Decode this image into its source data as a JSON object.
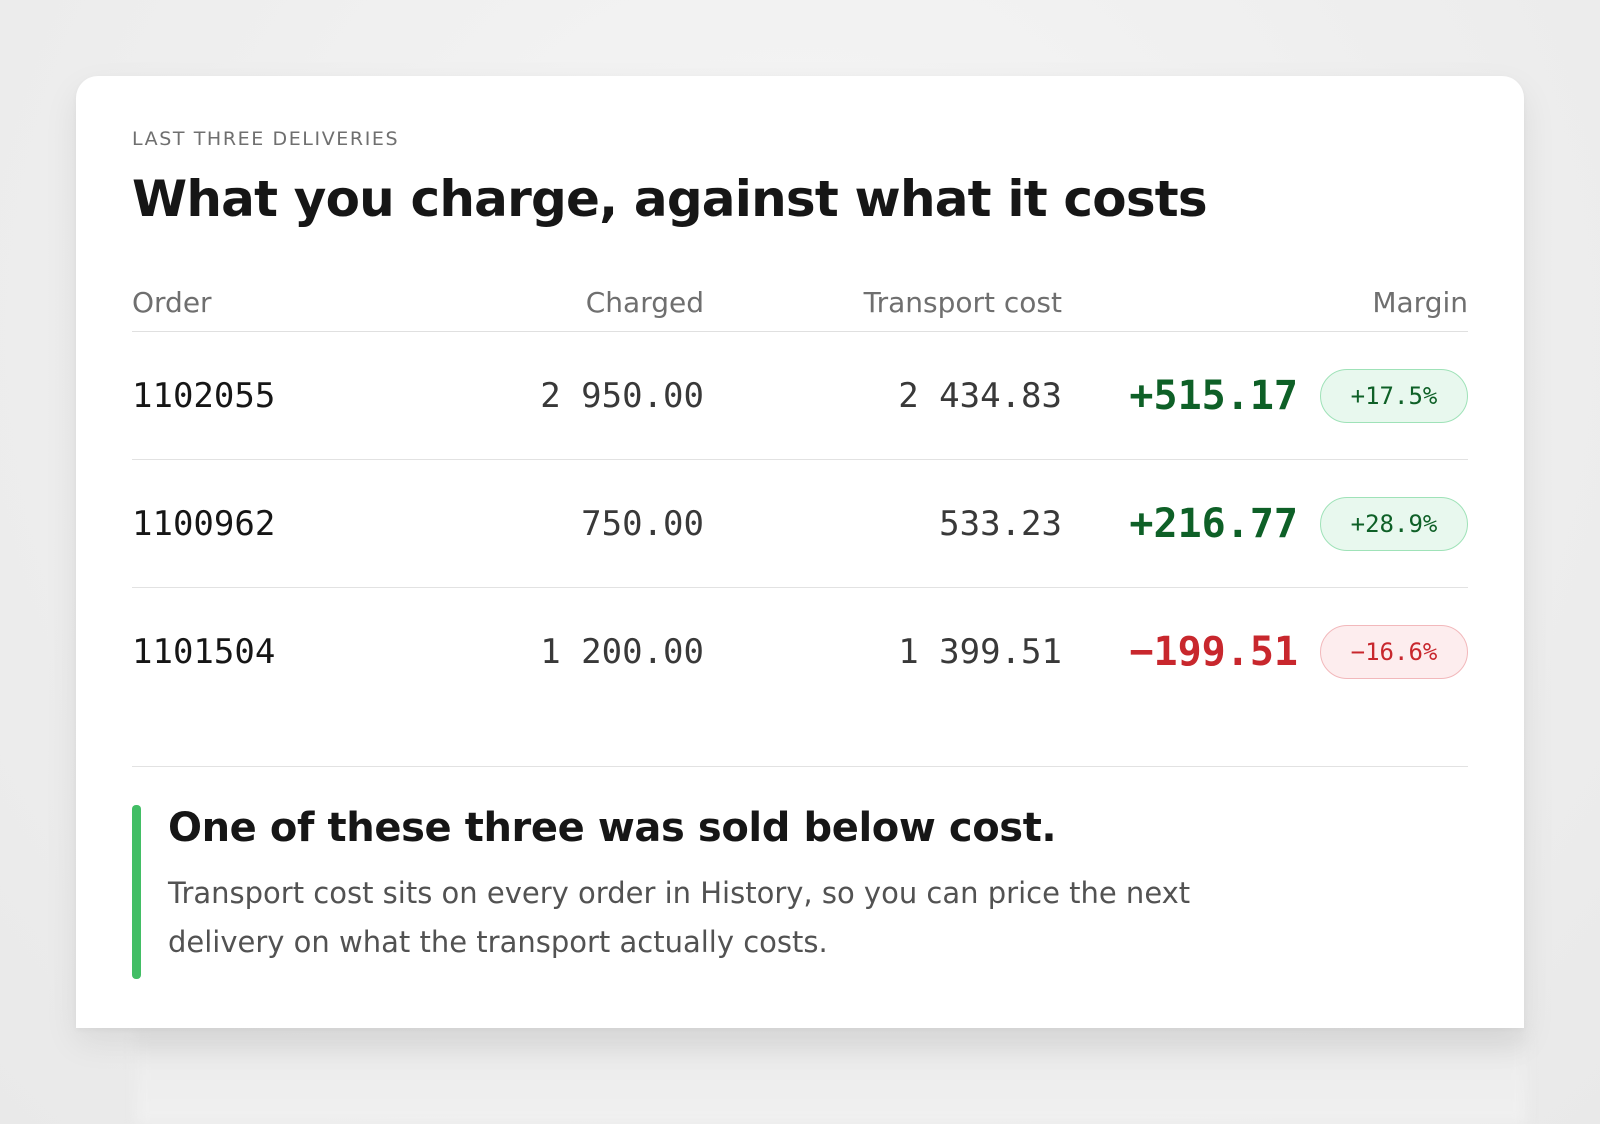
{
  "card": {
    "eyebrow": "LAST THREE DELIVERIES",
    "title": "What you charge, against what it costs"
  },
  "table": {
    "headers": {
      "order": "Order",
      "charged": "Charged",
      "transport": "Transport cost",
      "margin": "Margin"
    },
    "rows": [
      {
        "order": "1102055",
        "charged": "2 950.00",
        "transport": "2 434.83",
        "margin": "+515.17",
        "margin_pct": "+17.5%",
        "status": "positive"
      },
      {
        "order": "1100962",
        "charged": "750.00",
        "transport": "533.23",
        "margin": "+216.77",
        "margin_pct": "+28.9%",
        "status": "positive"
      },
      {
        "order": "1101504",
        "charged": "1 200.00",
        "transport": "1 399.51",
        "margin": "−199.51",
        "margin_pct": "−16.6%",
        "status": "negative"
      }
    ]
  },
  "callout": {
    "title": "One of these three was sold below cost.",
    "body": "Transport cost sits on every order in History, so you can price the next delivery on what the transport actually costs."
  },
  "colors": {
    "positive": "#0e6027",
    "negative": "#c8272d",
    "accent_bar": "#42be65"
  }
}
